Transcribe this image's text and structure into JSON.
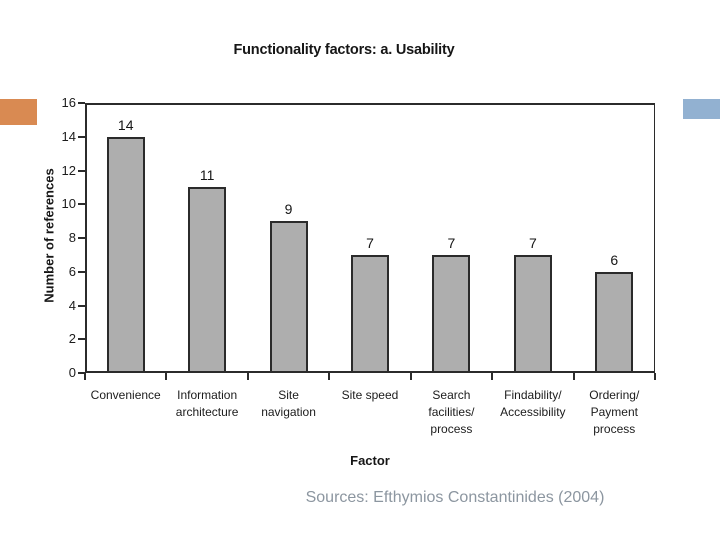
{
  "slide": {
    "title": "Functionality factors: a. Usability",
    "source": "Sources: Efthymios Constantinides (2004)"
  },
  "chart_data": {
    "type": "bar",
    "title": "Functionality factors: a. Usability",
    "categories": [
      "Convenience",
      "Information\narchitecture",
      "Site\nnavigation",
      "Site speed",
      "Search\nfacilities/\nprocess",
      "Findability/\nAccessibility",
      "Ordering/\nPayment\nprocess"
    ],
    "values": [
      14,
      11,
      9,
      7,
      7,
      7,
      6
    ],
    "bar_value_labels": [
      "14",
      "11",
      "9",
      "7",
      "7",
      "7",
      "6"
    ],
    "xlabel": "Factor",
    "ylabel": "Number of references",
    "ylim": [
      0,
      16
    ],
    "yticks": [
      0,
      2,
      4,
      6,
      8,
      10,
      12,
      14,
      16
    ],
    "grid": false,
    "legend": "none",
    "bar_fill": "#aeaeae",
    "bar_border": "#2b2b2b",
    "axis_color": "#2b2b2b"
  },
  "decor": {
    "left_accent_color": "#d98a52",
    "right_accent_color": "#92b1d1"
  },
  "colors": {
    "background": "#ffffff",
    "title_text": "#161616",
    "source_text": "#8c96a0"
  }
}
